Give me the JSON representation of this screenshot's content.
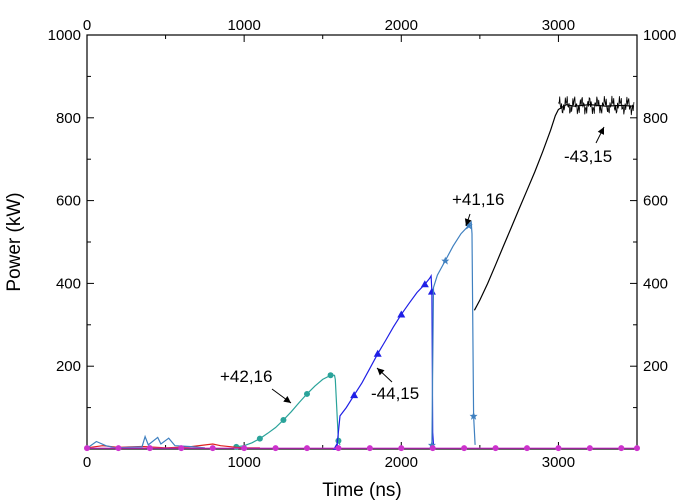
{
  "chart_data": {
    "type": "line",
    "title": "",
    "xlabel": "Time (ns)",
    "ylabel": "Power (kW)",
    "xlim": [
      0,
      3500
    ],
    "ylim": [
      0,
      1000
    ],
    "x_ticks": [
      0,
      1000,
      2000,
      3000
    ],
    "y_ticks": [
      200,
      400,
      600,
      800,
      1000
    ],
    "grid": false,
    "top_axis_mirror": true,
    "right_axis_mirror": true,
    "colors": {
      "teal": "#2aa39a",
      "blue": "#1f1fe6",
      "lightblue": "#3f80c0",
      "black": "#000000",
      "red": "#e02020",
      "magenta": "#cc33cc",
      "purple": "#6633cc"
    },
    "series": [
      {
        "color": "#2aa39a",
        "marker": "circle",
        "points": [
          [
            950,
            5
          ],
          [
            1000,
            8
          ],
          [
            1050,
            15
          ],
          [
            1100,
            25
          ],
          [
            1150,
            38
          ],
          [
            1200,
            52
          ],
          [
            1250,
            70
          ],
          [
            1300,
            90
          ],
          [
            1350,
            112
          ],
          [
            1400,
            133
          ],
          [
            1450,
            152
          ],
          [
            1500,
            168
          ],
          [
            1550,
            178
          ],
          [
            1575,
            178
          ],
          [
            1580,
            168
          ],
          [
            1600,
            20
          ],
          [
            1610,
            10
          ]
        ]
      },
      {
        "color": "#1f1fe6",
        "marker": "triangle",
        "points": [
          [
            1590,
            5
          ],
          [
            1610,
            80
          ],
          [
            1650,
            100
          ],
          [
            1700,
            130
          ],
          [
            1750,
            160
          ],
          [
            1800,
            195
          ],
          [
            1850,
            230
          ],
          [
            1900,
            262
          ],
          [
            1950,
            295
          ],
          [
            2000,
            325
          ],
          [
            2050,
            352
          ],
          [
            2100,
            378
          ],
          [
            2150,
            398
          ],
          [
            2180,
            412
          ],
          [
            2190,
            418
          ],
          [
            2195,
            380
          ],
          [
            2200,
            40
          ],
          [
            2205,
            10
          ]
        ]
      },
      {
        "color": "#3f80c0",
        "marker": "star",
        "points": [
          [
            2195,
            10
          ],
          [
            2205,
            390
          ],
          [
            2230,
            420
          ],
          [
            2280,
            455
          ],
          [
            2330,
            490
          ],
          [
            2380,
            520
          ],
          [
            2430,
            540
          ],
          [
            2445,
            548
          ],
          [
            2450,
            520
          ],
          [
            2460,
            80
          ],
          [
            2470,
            10
          ]
        ]
      },
      {
        "color": "#000000",
        "marker": "none",
        "points": [
          [
            2465,
            335
          ],
          [
            2500,
            360
          ],
          [
            2550,
            400
          ],
          [
            2600,
            445
          ],
          [
            2650,
            490
          ],
          [
            2700,
            535
          ],
          [
            2750,
            580
          ],
          [
            2800,
            625
          ],
          [
            2850,
            670
          ],
          [
            2900,
            718
          ],
          [
            2950,
            770
          ],
          [
            2980,
            805
          ],
          [
            3000,
            820
          ],
          [
            3050,
            832
          ],
          [
            3100,
            828
          ],
          [
            3200,
            832
          ],
          [
            3300,
            828
          ],
          [
            3400,
            830
          ],
          [
            3480,
            828
          ]
        ]
      },
      {
        "color": "#e02020",
        "marker": "none",
        "points": [
          [
            0,
            3
          ],
          [
            100,
            8
          ],
          [
            200,
            4
          ],
          [
            350,
            6
          ],
          [
            500,
            3
          ],
          [
            650,
            5
          ],
          [
            800,
            12
          ],
          [
            850,
            8
          ],
          [
            950,
            4
          ],
          [
            1000,
            3
          ],
          [
            1100,
            3
          ]
        ]
      },
      {
        "color": "#3f80c0",
        "marker": "none",
        "points": [
          [
            0,
            2
          ],
          [
            60,
            18
          ],
          [
            120,
            8
          ],
          [
            180,
            3
          ],
          [
            350,
            5
          ],
          [
            370,
            30
          ],
          [
            390,
            10
          ],
          [
            450,
            28
          ],
          [
            470,
            12
          ],
          [
            520,
            26
          ],
          [
            560,
            8
          ],
          [
            650,
            6
          ],
          [
            750,
            3
          ]
        ]
      },
      {
        "color": "#cc33cc",
        "marker": "circle",
        "points": [
          [
            0,
            2
          ],
          [
            200,
            2
          ],
          [
            400,
            2
          ],
          [
            600,
            2
          ],
          [
            800,
            2
          ],
          [
            1000,
            2
          ],
          [
            1200,
            2
          ],
          [
            1400,
            2
          ],
          [
            1600,
            2
          ],
          [
            1800,
            2
          ],
          [
            2000,
            2
          ],
          [
            2200,
            2
          ],
          [
            2400,
            2
          ],
          [
            2600,
            2
          ],
          [
            2800,
            2
          ],
          [
            3000,
            2
          ],
          [
            3200,
            2
          ],
          [
            3400,
            2
          ],
          [
            3500,
            2
          ]
        ]
      }
    ],
    "annotations": [
      {
        "text": "+42,16",
        "x": 1450,
        "y": 163
      },
      {
        "text": "-44,15",
        "x": 1850,
        "y": 208
      },
      {
        "text": "+41,16",
        "x": 2430,
        "y": 540
      },
      {
        "text": "-43,15",
        "x": 3280,
        "y": 823
      }
    ]
  },
  "labels": {
    "xlabel": "Time (ns)",
    "ylabel": "Power (kW)",
    "a1": "+42,16",
    "a2": "-44,15",
    "a3": "+41,16",
    "a4": "-43,15"
  }
}
